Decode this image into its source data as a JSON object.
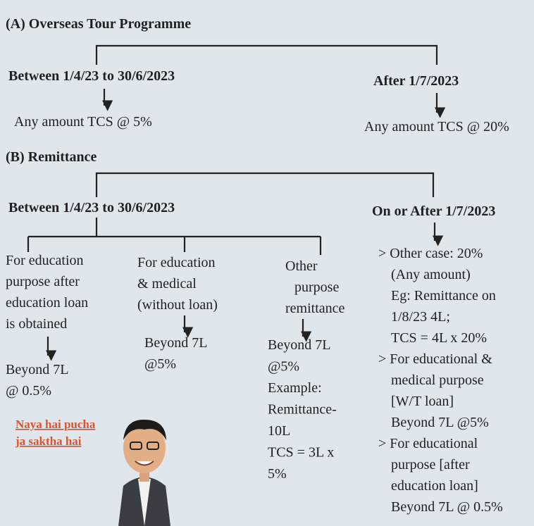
{
  "section_a": {
    "title": "(A) Overseas Tour Programme",
    "left": {
      "label": "Between 1/4/23 to 30/6/2023",
      "result": "Any amount TCS @ 5%"
    },
    "right": {
      "label": "After 1/7/2023",
      "result": "Any amount TCS @ 20%"
    }
  },
  "section_b": {
    "title": "(B) Remittance",
    "left": {
      "label": "Between 1/4/23 to 30/6/2023",
      "branches": [
        {
          "lines": [
            "For education",
            "purpose after",
            "education loan",
            "is obtained"
          ],
          "result": [
            "Beyond 7L",
            "@ 0.5%"
          ]
        },
        {
          "lines": [
            "For education",
            "& medical",
            "(without loan)"
          ],
          "result": [
            "Beyond 7L",
            "@5%"
          ]
        },
        {
          "lines": [
            "Other",
            "purpose",
            "remittance"
          ],
          "result": [
            "Beyond 7L",
            "@5%",
            "Example:",
            "Remittance-",
            "10L",
            "TCS = 3L x",
            "5%"
          ]
        }
      ]
    },
    "right": {
      "label": "On or After 1/7/2023",
      "lines": [
        "> Other case: 20%",
        "(Any amount)",
        "Eg: Remittance on",
        "1/8/23 4L;",
        "TCS = 4L x 20%",
        "> For educational &",
        "medical purpose",
        "[W/T loan]",
        "Beyond 7L @5%",
        "> For educational",
        "purpose [after",
        "education loan]",
        "Beyond 7L @ 0.5%"
      ]
    }
  },
  "note": {
    "lines": [
      "Naya hai pucha",
      "ja saktha hai"
    ]
  }
}
